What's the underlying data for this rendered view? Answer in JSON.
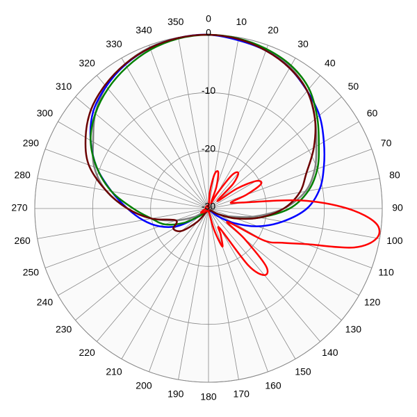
{
  "chart_data": {
    "type": "polar",
    "rlim": [
      -30,
      0
    ],
    "rticks": [
      -30,
      -20,
      -10,
      0
    ],
    "thetaticks": [
      0,
      10,
      20,
      30,
      40,
      50,
      60,
      70,
      80,
      90,
      100,
      110,
      120,
      130,
      140,
      150,
      160,
      170,
      180,
      190,
      200,
      210,
      220,
      230,
      240,
      250,
      260,
      270,
      280,
      290,
      300,
      310,
      320,
      330,
      340,
      350
    ],
    "grid": true,
    "series": [
      {
        "color": "#808080",
        "theta": [
          0,
          10,
          20,
          30,
          40,
          50,
          60,
          70,
          80,
          90,
          100,
          110,
          120,
          130,
          140,
          150,
          160,
          170,
          180,
          190,
          200,
          210,
          220,
          230,
          240,
          250,
          260,
          270,
          280,
          290,
          300,
          310,
          320,
          330,
          340,
          350
        ],
        "values": [
          0,
          -0.3,
          -0.8,
          -1.8,
          -3.5,
          -6,
          -8.5,
          -10.5,
          -13,
          -17,
          -22,
          -26,
          -28,
          -29,
          -29.5,
          -29.5,
          -29.5,
          -29.5,
          -29.5,
          -29.5,
          -29.5,
          -29.5,
          -29.5,
          -29,
          -27,
          -24,
          -20,
          -16,
          -12,
          -9,
          -7,
          -4.5,
          -2.5,
          -1.2,
          -0.4,
          -0.1
        ]
      },
      {
        "color": "#0000ff",
        "theta": [
          0,
          10,
          20,
          30,
          40,
          50,
          60,
          70,
          80,
          90,
          100,
          110,
          120,
          130,
          140,
          150,
          160,
          170,
          180,
          190,
          200,
          210,
          220,
          230,
          240,
          250,
          260,
          270,
          280,
          290,
          300,
          310,
          320,
          330,
          340,
          350
        ],
        "values": [
          0,
          -0.5,
          -1,
          -2,
          -3.5,
          -5,
          -7,
          -8.8,
          -10.5,
          -13,
          -17,
          -21,
          -25,
          -28,
          -29.5,
          -29.5,
          -29.5,
          -29.5,
          -29.5,
          -29.5,
          -29.5,
          -29.5,
          -29.5,
          -28,
          -24,
          -21,
          -18.5,
          -16,
          -13,
          -9.5,
          -6.5,
          -4,
          -2.5,
          -1.3,
          -0.5,
          -0.1
        ]
      },
      {
        "color": "#008000",
        "theta": [
          0,
          10,
          20,
          30,
          40,
          50,
          60,
          70,
          80,
          90,
          100,
          110,
          120,
          130,
          140,
          150,
          160,
          170,
          180,
          190,
          200,
          210,
          220,
          230,
          240,
          250,
          260,
          270,
          280,
          290,
          300,
          310,
          320,
          330,
          340,
          350
        ],
        "values": [
          0,
          -0.2,
          -0.7,
          -1.5,
          -3,
          -5.5,
          -8,
          -10,
          -12.5,
          -16,
          -21,
          -25,
          -28,
          -29.5,
          -29.5,
          -29.5,
          -29.5,
          -29.5,
          -29.5,
          -29.5,
          -29.5,
          -29.5,
          -29.5,
          -28,
          -25,
          -22,
          -20,
          -17,
          -13,
          -9.5,
          -6.5,
          -4.5,
          -3,
          -1.8,
          -0.8,
          -0.2
        ]
      },
      {
        "color": "#6b0000",
        "theta": [
          0,
          10,
          20,
          30,
          40,
          50,
          60,
          70,
          80,
          90,
          100,
          110,
          120,
          130,
          140,
          150,
          160,
          170,
          180,
          190,
          200,
          210,
          220,
          230,
          240,
          250,
          260,
          270,
          280,
          290,
          300,
          310,
          320,
          330,
          340,
          350
        ],
        "values": [
          0,
          -0.3,
          -1,
          -2,
          -3.5,
          -6,
          -9,
          -12,
          -14,
          -17,
          -21,
          -25,
          -28,
          -29.5,
          -29.5,
          -29.5,
          -29.5,
          -29.5,
          -29.5,
          -29.5,
          -29.5,
          -29.5,
          -27,
          -24,
          -23,
          -24,
          -20,
          -16,
          -12,
          -8,
          -5.5,
          -3.5,
          -2.2,
          -1.2,
          -0.5,
          -0.1
        ]
      },
      {
        "color": "#ff0000",
        "theta": [
          0,
          5,
          10,
          15,
          20,
          25,
          30,
          35,
          40,
          45,
          50,
          55,
          60,
          65,
          70,
          75,
          80,
          85,
          90,
          95,
          100,
          105,
          110,
          115,
          120,
          125,
          130,
          135,
          140,
          145,
          150,
          155,
          160,
          165,
          170,
          175,
          180,
          190,
          200,
          210,
          220,
          230,
          240,
          250,
          260,
          270,
          280,
          290,
          300,
          310,
          320,
          330,
          340,
          350
        ],
        "values": [
          -30,
          -27,
          -24,
          -23.5,
          -26,
          -29,
          -27,
          -23,
          -22,
          -24,
          -28,
          -24,
          -20.5,
          -20,
          -23,
          -26,
          -24,
          -14,
          -6,
          -1,
          -0.5,
          -4,
          -12,
          -16,
          -19,
          -26,
          -22,
          -16,
          -15,
          -18,
          -26,
          -25,
          -23,
          -26,
          -29,
          -29.5,
          -29.5,
          -29.5,
          -29.5,
          -29.5,
          -29.5,
          -29,
          -28.5,
          -29,
          -29.5,
          -29.5,
          -29.5,
          -29.5,
          -29.5,
          -29.5,
          -29.5,
          -29.5,
          -29.5,
          -29.5
        ]
      }
    ]
  }
}
